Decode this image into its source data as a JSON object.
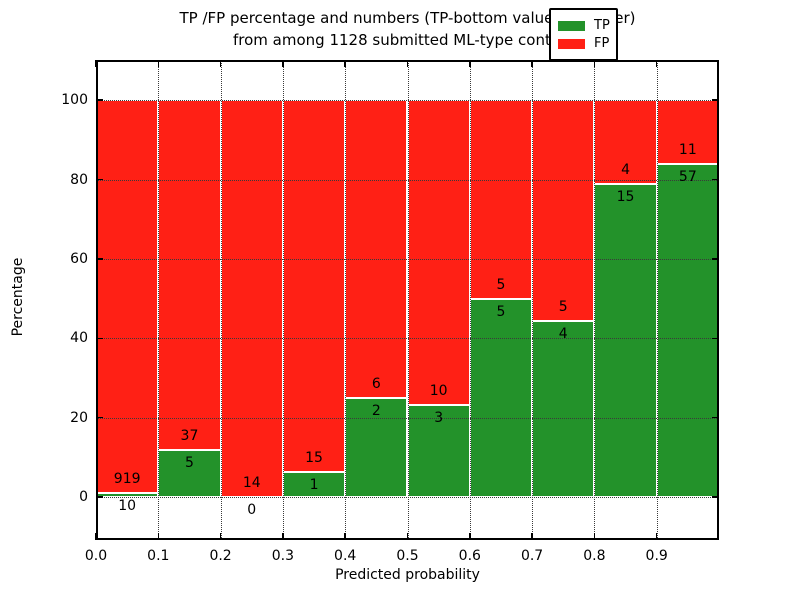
{
  "figure": {
    "title_line1": "TP /FP percentage and numbers (TP-bottom value, FP-upper)",
    "title_line2": "from among 1128 submitted ML-type contacts"
  },
  "chart_data": {
    "type": "bar",
    "stacked": true,
    "title": "TP /FP percentage and numbers (TP-bottom value, FP-upper) from among 1128 submitted ML-type contacts",
    "xlabel": "Predicted probability",
    "ylabel": "Percentage",
    "xlim": [
      0.0,
      1.0
    ],
    "ylim": [
      -10.8,
      110.1
    ],
    "xticks": [
      0.0,
      0.1,
      0.2,
      0.3,
      0.4,
      0.5,
      0.6,
      0.7,
      0.8,
      0.9
    ],
    "yticks": [
      0,
      20,
      40,
      60,
      80,
      100
    ],
    "grid": true,
    "bar_width": 0.1,
    "bin_starts": [
      0.0,
      0.1,
      0.2,
      0.3,
      0.4,
      0.5,
      0.6,
      0.7,
      0.8,
      0.9
    ],
    "series": [
      {
        "name": "TP",
        "color": "#23922a",
        "counts": [
          10,
          5,
          0,
          1,
          2,
          3,
          5,
          4,
          15,
          57
        ]
      },
      {
        "name": "FP",
        "color": "#ff2015",
        "counts": [
          919,
          37,
          14,
          15,
          6,
          10,
          5,
          5,
          4,
          11
        ]
      }
    ],
    "tp_percent": [
      1.08,
      11.9,
      0.0,
      6.25,
      25.0,
      23.08,
      50.0,
      44.44,
      78.95,
      83.82
    ],
    "bar_total_percent": 100,
    "total_contacts": 1128,
    "legend": {
      "position": "upper right",
      "entries": [
        "TP",
        "FP"
      ]
    }
  },
  "colors": {
    "tp": "#23922a",
    "fp": "#ff2015",
    "grid": "#3a3a3a",
    "frame": "#000000",
    "background": "#ffffff"
  }
}
